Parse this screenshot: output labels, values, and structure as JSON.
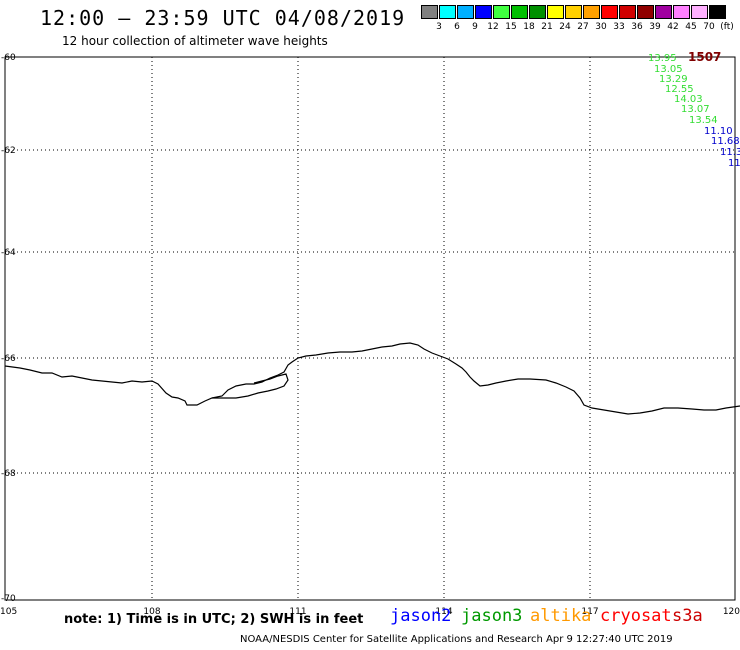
{
  "header": {
    "title": "12:00 – 23:59 UTC 04/08/2019",
    "subtitle": "12 hour collection of altimeter wave heights"
  },
  "legend": {
    "colors": [
      "#808080",
      "#00ffff",
      "#00b0ff",
      "#0000ff",
      "#40ff40",
      "#00c000",
      "#009000",
      "#ffff00",
      "#ffd000",
      "#ffa000",
      "#ff0000",
      "#d00000",
      "#900000",
      "#a000a0",
      "#ff80ff",
      "#ffb0ff",
      "#000000"
    ],
    "labels": [
      "3",
      "6",
      "9",
      "12",
      "15",
      "18",
      "21",
      "24",
      "27",
      "30",
      "33",
      "36",
      "39",
      "42",
      "45",
      "70",
      "(ft)"
    ]
  },
  "map": {
    "lon_ticks": [
      "105",
      "108",
      "111",
      "114",
      "117",
      "120"
    ],
    "lat_ticks": [
      "-60",
      "-62",
      "-64",
      "-66",
      "-68",
      "-70"
    ],
    "lon_range": [
      105,
      120
    ],
    "lat_range": [
      -60,
      -70
    ],
    "grid": "dotted",
    "coastline_color": "#000000"
  },
  "track": {
    "time_label": "1507",
    "time_label_color": "#800000",
    "points": [
      {
        "value": "13.95",
        "color": "#33dd33"
      },
      {
        "value": "13.05",
        "color": "#33dd33"
      },
      {
        "value": "13.29",
        "color": "#33dd33"
      },
      {
        "value": "12.55",
        "color": "#33dd33"
      },
      {
        "value": "14.03",
        "color": "#33dd33"
      },
      {
        "value": "13.07",
        "color": "#33dd33"
      },
      {
        "value": "13.54",
        "color": "#33dd33"
      },
      {
        "value": "11.10",
        "color": "#0000cc"
      },
      {
        "value": "11.68",
        "color": "#0000cc"
      },
      {
        "value": "11.3",
        "color": "#0000cc"
      },
      {
        "value": "11",
        "color": "#0000cc"
      }
    ]
  },
  "footer": {
    "note": "note: 1) Time is in UTC; 2) SWH is in feet",
    "satellites": [
      {
        "name": "jason2",
        "color": "#0000ff"
      },
      {
        "name": "jason3",
        "color": "#009900"
      },
      {
        "name": "altika",
        "color": "#ff9900"
      },
      {
        "name": "cryosat",
        "color": "#ff0000"
      },
      {
        "name": "s3a",
        "color": "#cc0000"
      }
    ],
    "credit": "NOAA/NESDIS Center for Satellite Applications and Research    Apr  9 12:27:40 UTC 2019"
  }
}
